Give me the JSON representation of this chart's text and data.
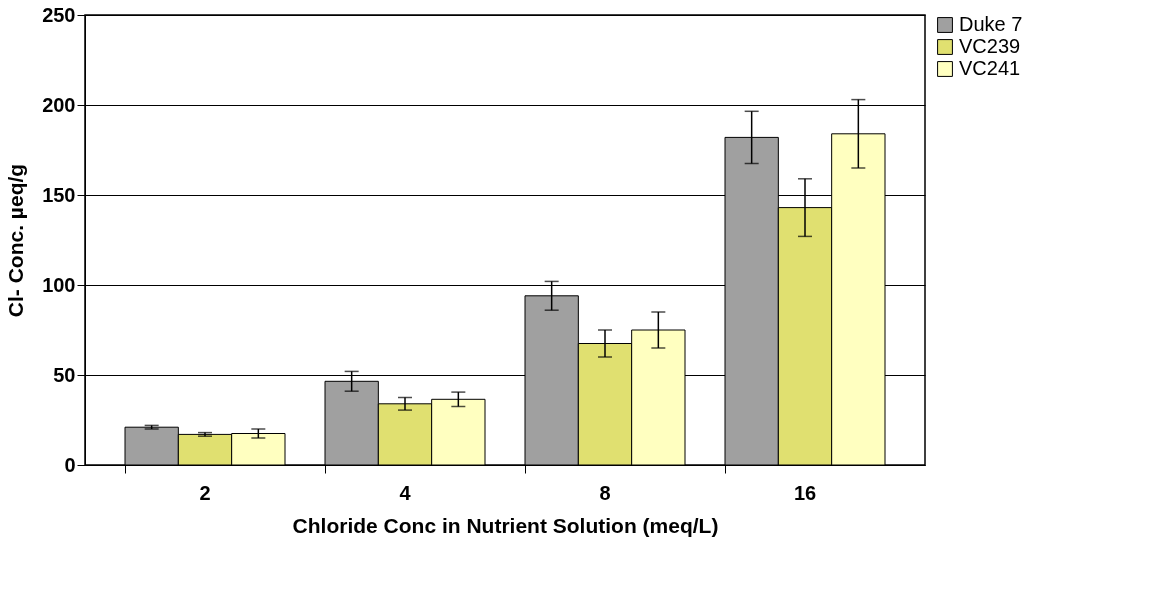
{
  "chart_data": {
    "type": "bar",
    "xlabel": "Chloride Conc in Nutrient Solution (meq/L)",
    "ylabel": "Cl- Conc.    µeq/g",
    "categories": [
      "2",
      "4",
      "8",
      "16"
    ],
    "series": [
      {
        "name": "Duke 7",
        "color": "#a0a0a0",
        "values": [
          21,
          46.5,
          94,
          182
        ],
        "errors": [
          1,
          5.5,
          8,
          14.5
        ]
      },
      {
        "name": "VC239",
        "color": "#e0e070",
        "values": [
          17,
          34,
          67.5,
          143
        ],
        "errors": [
          1,
          3.5,
          7.5,
          16
        ]
      },
      {
        "name": "VC241",
        "color": "#ffffc0",
        "values": [
          17.5,
          36.5,
          75,
          184
        ],
        "errors": [
          2.5,
          4,
          10,
          19
        ]
      }
    ],
    "ylim": [
      0,
      250
    ],
    "yticks": [
      0,
      50,
      100,
      150,
      200,
      250
    ],
    "grid": "y",
    "legend": "right"
  }
}
